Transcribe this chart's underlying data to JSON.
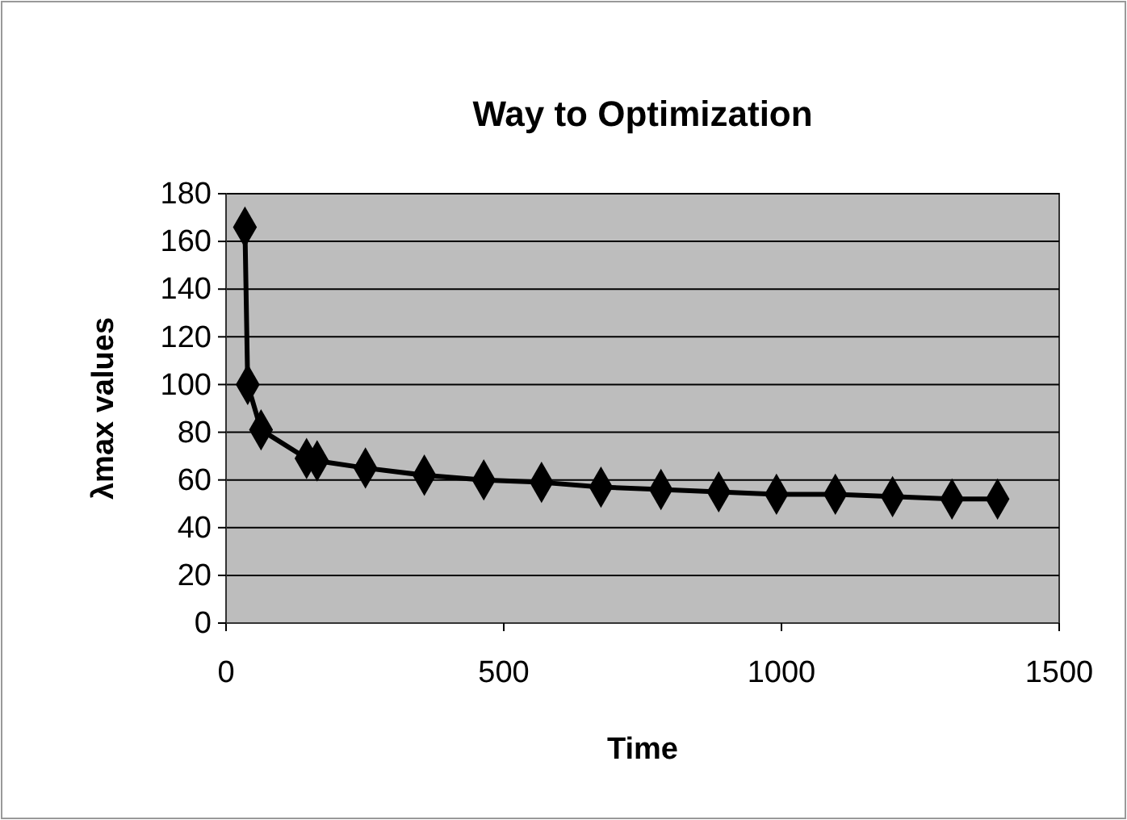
{
  "chart_data": {
    "type": "line",
    "title": "Way to Optimization",
    "xlabel": "Time",
    "ylabel": "λmax values",
    "x": [
      34,
      39,
      63,
      145,
      164,
      251,
      357,
      464,
      568,
      675,
      783,
      887,
      991,
      1097,
      1200,
      1307,
      1389
    ],
    "series": [
      {
        "color": "#000000",
        "values": [
          166,
          100,
          81,
          69,
          68,
          65,
          62,
          60,
          59,
          57,
          56,
          55,
          54,
          54,
          53,
          52,
          52
        ]
      }
    ],
    "xlim": [
      0,
      1500
    ],
    "xticks": [
      0,
      500,
      1000,
      1500
    ],
    "ylim": [
      0,
      180
    ],
    "yticks": [
      0,
      20,
      40,
      60,
      80,
      100,
      120,
      140,
      160,
      180
    ],
    "grid": "y",
    "marker": "diamond",
    "line_style": "solid"
  }
}
